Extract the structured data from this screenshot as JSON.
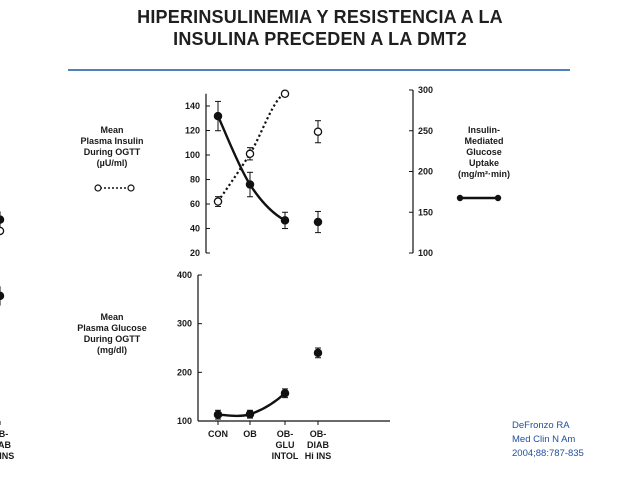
{
  "slide": {
    "title_line1": "HIPERINSULINEMIA Y RESISTENCIA A LA",
    "title_line2": "INSULINA PRECEDEN A LA DMT2",
    "accent_color": "#4f81bd",
    "citation": [
      "DeFronzo RA",
      "Med Clin N Am",
      "2004;88:787-835"
    ],
    "citation_color": "#1f4e9c"
  },
  "chart_data": [
    {
      "type": "line",
      "categories": [
        "CON",
        "OB",
        "OB-\nGLU\nINTOL",
        "OB-\nDIAB\nHi INS",
        "OB-\nDIAB\nLo INS"
      ],
      "left_axis": {
        "label": [
          "Mean",
          "Plasma Insulin",
          "During OGTT",
          "(µU/ml)"
        ],
        "ylim": [
          20,
          150
        ],
        "ticks": [
          20,
          40,
          60,
          80,
          100,
          120,
          140
        ]
      },
      "right_axis": {
        "label": [
          "Insulin-",
          "Mediated",
          "Glucose",
          "Uptake",
          "(mg/m²·min)"
        ],
        "ylim": [
          100,
          300
        ],
        "ticks": [
          100,
          150,
          200,
          250,
          300
        ]
      },
      "series": [
        {
          "key": "insulin",
          "axis": "left",
          "style": "dotted-open",
          "x": [
            0,
            1,
            2,
            3,
            5
          ],
          "values": [
            62,
            101,
            150,
            119,
            38
          ],
          "err": [
            4,
            5,
            0,
            9,
            3
          ]
        },
        {
          "key": "glucose_uptake",
          "axis": "right",
          "style": "solid-filled",
          "x": [
            0,
            1,
            2,
            3,
            5
          ],
          "values": [
            268,
            184,
            140,
            138,
            141
          ],
          "err": [
            18,
            15,
            10,
            13,
            10
          ]
        }
      ]
    },
    {
      "type": "line",
      "categories": [
        "CON",
        "OB",
        "OB-\nGLU\nINTOL",
        "OB-\nDIAB\nHi INS",
        "OB-\nDIAB\nLo INS"
      ],
      "left_axis": {
        "label": [
          "Mean",
          "Plasma Glucose",
          "During OGTT",
          "(mg/dl)"
        ],
        "ylim": [
          100,
          400
        ],
        "ticks": [
          100,
          200,
          300,
          400
        ]
      },
      "series": [
        {
          "key": "glucose",
          "axis": "left",
          "style": "solid-filled",
          "x": [
            0,
            1,
            2,
            3,
            5
          ],
          "values": [
            113,
            114,
            157,
            240,
            357
          ],
          "err": [
            9,
            8,
            9,
            10,
            20
          ]
        }
      ]
    }
  ]
}
